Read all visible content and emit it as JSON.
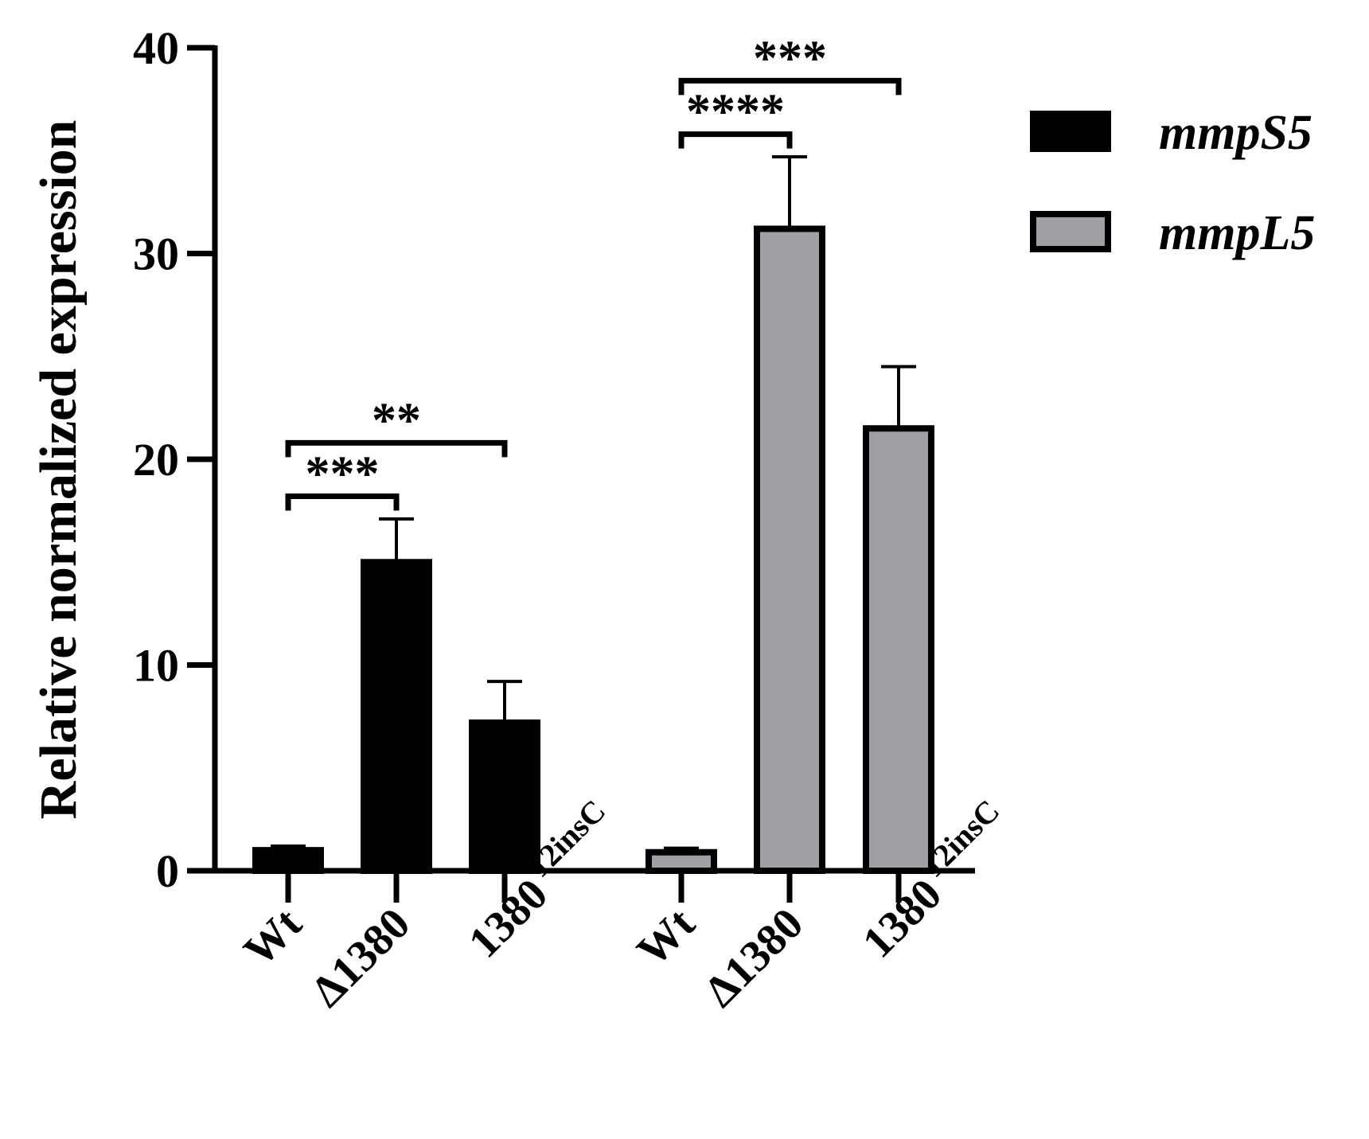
{
  "chart_data": {
    "type": "bar",
    "ylabel": "Relative normalized expression",
    "ylim": [
      0,
      40
    ],
    "yticks": [
      0,
      10,
      20,
      30,
      40
    ],
    "grid": false,
    "legend_placement": "top-right",
    "groups": [
      {
        "series": "mmpS5",
        "color": "#000000",
        "bars": [
          {
            "label": "Wt",
            "sup": "",
            "value": 1.0,
            "error": 0.2
          },
          {
            "label": "Δ1380",
            "sup": "",
            "value": 15.0,
            "error": 2.1
          },
          {
            "label": "1380",
            "sup": "12insC",
            "value": 7.2,
            "error": 2.0
          }
        ],
        "significance": [
          {
            "from": 0,
            "to": 1,
            "stars": "***",
            "y": 18.2
          },
          {
            "from": 0,
            "to": 2,
            "stars": "**",
            "y": 20.8
          }
        ]
      },
      {
        "series": "mmpL5",
        "color": "#a0a0a4",
        "bars": [
          {
            "label": "Wt",
            "sup": "",
            "value": 0.9,
            "error": 0.2
          },
          {
            "label": "Δ1380",
            "sup": "",
            "value": 31.2,
            "error": 3.5
          },
          {
            "label": "1380",
            "sup": "12insC",
            "value": 21.5,
            "error": 3.0
          }
        ],
        "significance": [
          {
            "from": 0,
            "to": 1,
            "stars": "****",
            "y": 35.8
          },
          {
            "from": 0,
            "to": 2,
            "stars": "***",
            "y": 38.4
          }
        ]
      }
    ],
    "legend": [
      {
        "name": "mmpS5",
        "color": "#000000"
      },
      {
        "name": "mmpL5",
        "color": "#a0a0a4"
      }
    ]
  }
}
